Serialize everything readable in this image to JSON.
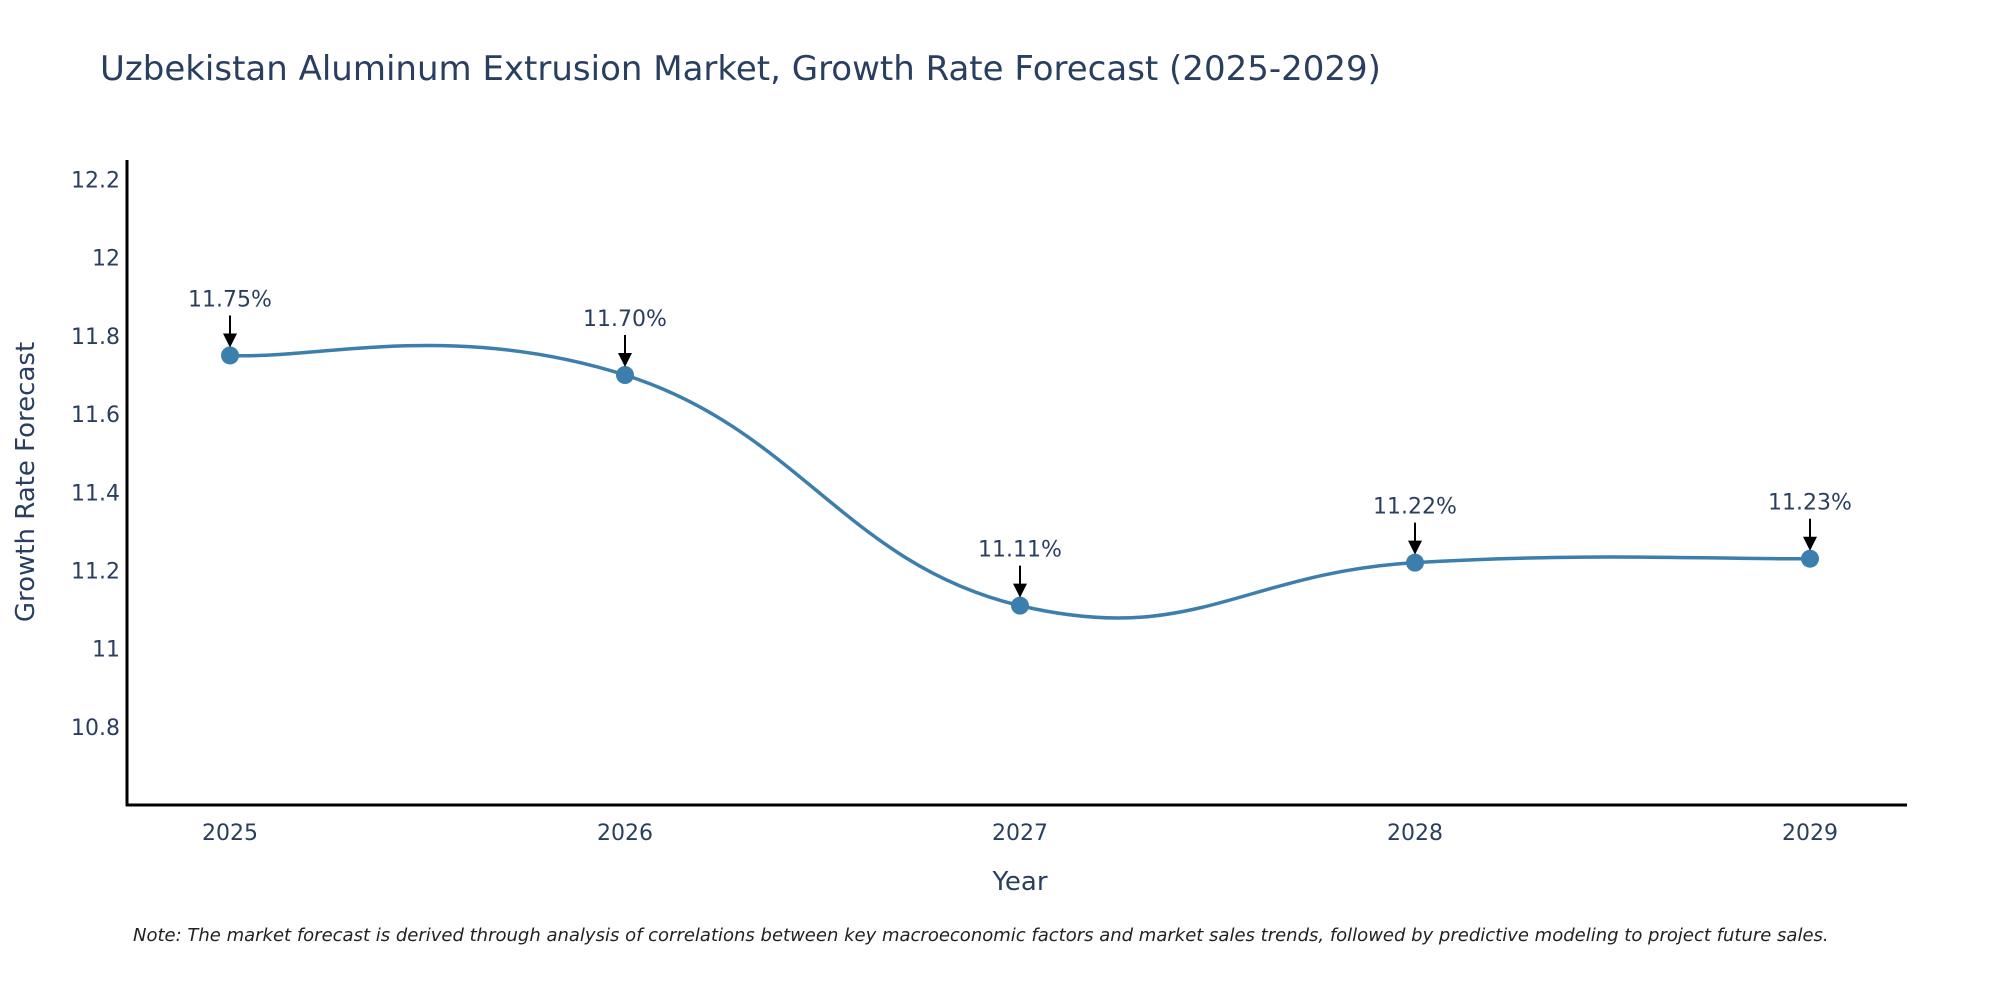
{
  "chart_data": {
    "type": "line",
    "title": "Uzbekistan Aluminum Extrusion Market, Growth Rate Forecast (2025-2029)",
    "xlabel": "Year",
    "ylabel": "Growth Rate Forecast",
    "categories": [
      "2025",
      "2026",
      "2027",
      "2028",
      "2029"
    ],
    "series": [
      {
        "name": "Growth Rate Forecast",
        "values": [
          11.75,
          11.7,
          11.11,
          11.22,
          11.23
        ],
        "labels": [
          "11.75%",
          "11.70%",
          "11.11%",
          "11.22%",
          "11.23%"
        ]
      }
    ],
    "ylim": [
      10.6,
      12.25
    ],
    "yticks": [
      10.8,
      11,
      11.2,
      11.4,
      11.6,
      11.8,
      12,
      12.2
    ],
    "ytick_labels": [
      "10.8",
      "11",
      "11.2",
      "11.4",
      "11.6",
      "11.8",
      "12",
      "12.2"
    ],
    "grid": false,
    "line_color": "#3d7fac",
    "note": "Note: The market forecast is derived through analysis of correlations between key macroeconomic factors and market sales trends, followed by predictive modeling to project future sales."
  }
}
